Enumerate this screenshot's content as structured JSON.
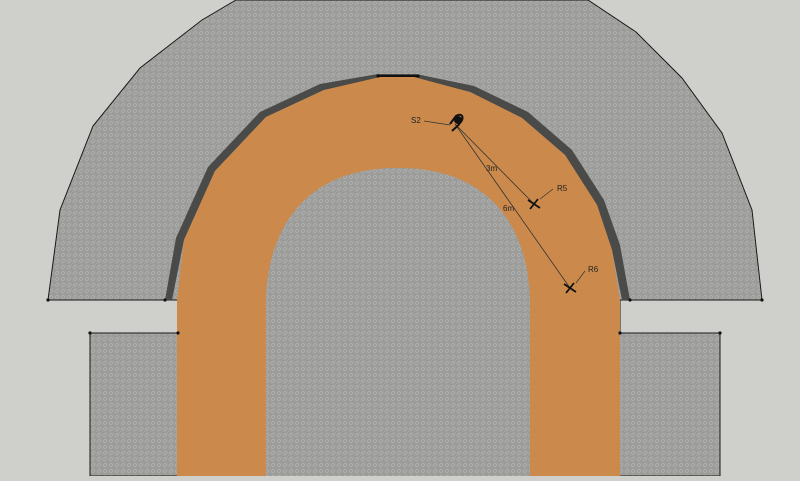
{
  "scene": {
    "background_color": "#cfd0cc",
    "floor_color": "#9e9e9c",
    "track_color": "#cb8a4c",
    "shadow_color": "#4a4a48",
    "edge_color": "#1a1a1a"
  },
  "markers": [
    {
      "id": "S2",
      "label": "S2",
      "icon": "sound-source-icon"
    },
    {
      "id": "R5",
      "label": "R5",
      "icon": "receiver-icon"
    },
    {
      "id": "R6",
      "label": "R6",
      "icon": "receiver-icon"
    }
  ],
  "dimensions": [
    {
      "label": "3m",
      "from": "S2",
      "to": "R5"
    },
    {
      "label": "6m",
      "from": "S2",
      "to": "R6"
    }
  ]
}
